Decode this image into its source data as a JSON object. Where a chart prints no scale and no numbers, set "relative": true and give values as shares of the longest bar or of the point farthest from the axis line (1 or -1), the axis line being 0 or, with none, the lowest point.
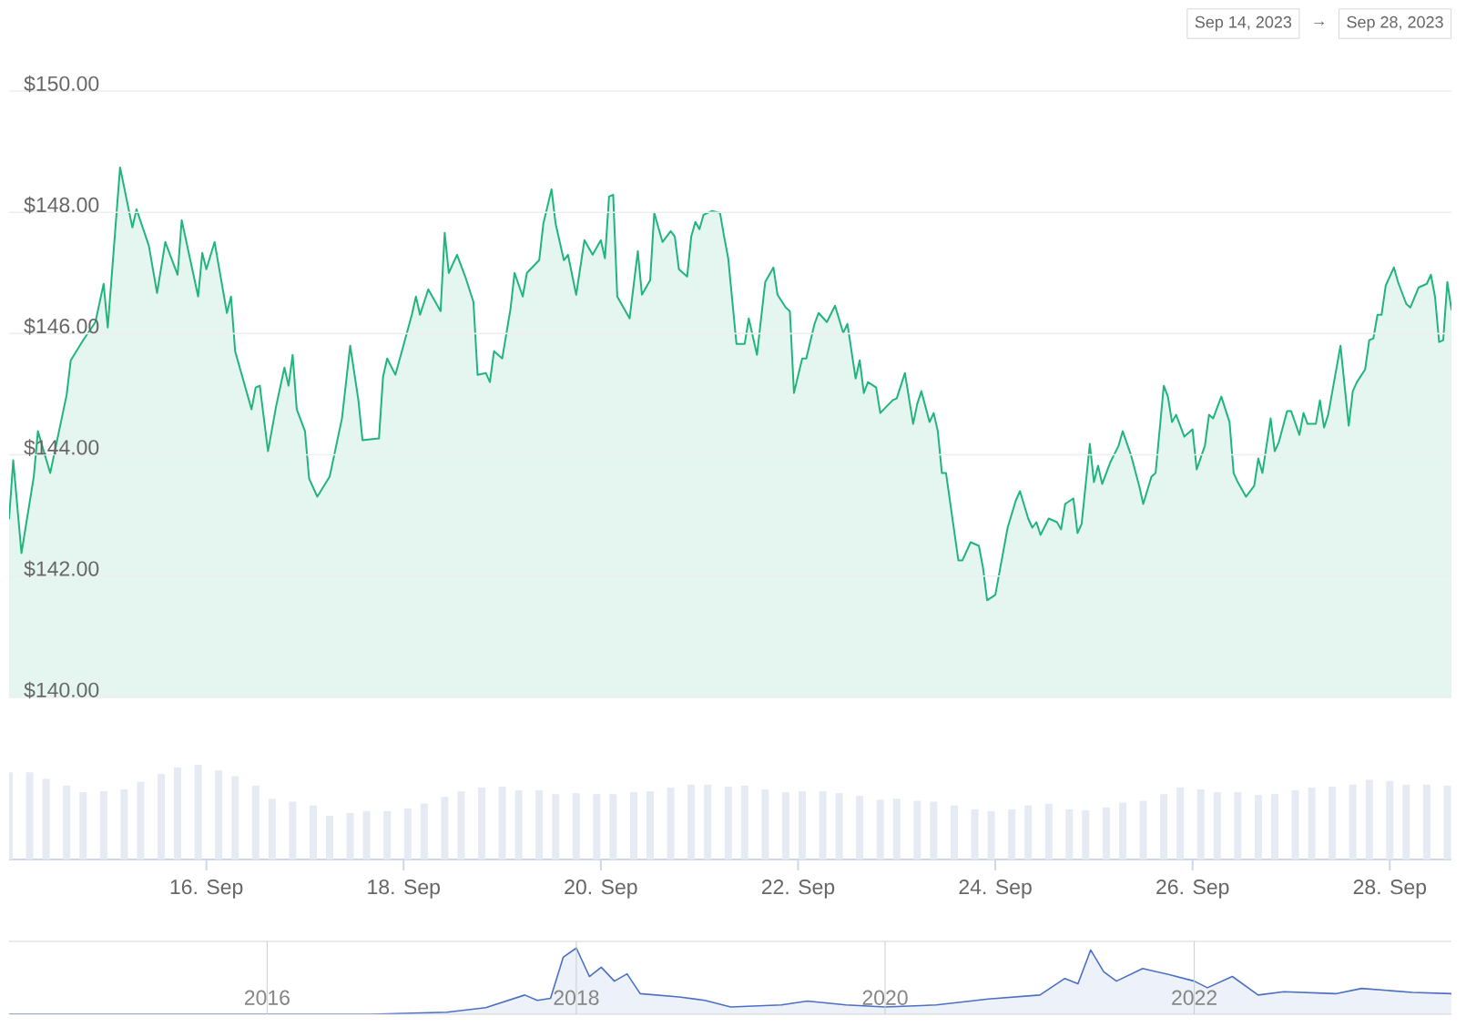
{
  "chart_data": [
    {
      "type": "area",
      "color": "#1fb57c",
      "grid": "y",
      "tick_labels": "y",
      "xlim": [
        "2023-09-14T00:00",
        "2023-09-28T15:00"
      ],
      "ylim": [
        140,
        150
      ],
      "yticks": [
        {
          "value": 140,
          "label": "$140.00"
        },
        {
          "value": 142,
          "label": "$142.00"
        },
        {
          "value": 144,
          "label": "$144.00"
        },
        {
          "value": 146,
          "label": "$146.00"
        },
        {
          "value": 148,
          "label": "$148.00"
        },
        {
          "value": 150,
          "label": "$150.00"
        }
      ],
      "annotations": [
        "Sep 14, 2023",
        "→",
        "Sep 28, 2023"
      ],
      "x": [
        "2023-09-14T00:00",
        "2023-09-14T01:00",
        "2023-09-14T03:00",
        "2023-09-14T06:00",
        "2023-09-14T07:00",
        "2023-09-14T10:00",
        "2023-09-14T14:00",
        "2023-09-14T15:00",
        "2023-09-14T18:00",
        "2023-09-14T21:00",
        "2023-09-14T23:00",
        "2023-09-15T00:00",
        "2023-09-15T03:00",
        "2023-09-15T06:00",
        "2023-09-15T07:00",
        "2023-09-15T10:00",
        "2023-09-15T12:00",
        "2023-09-15T14:00",
        "2023-09-15T17:00",
        "2023-09-15T18:00",
        "2023-09-15T22:00",
        "2023-09-15T23:00",
        "2023-09-16T00:00",
        "2023-09-16T02:00",
        "2023-09-16T05:00",
        "2023-09-16T06:00",
        "2023-09-16T07:00",
        "2023-09-16T11:00",
        "2023-09-16T12:00",
        "2023-09-16T13:00",
        "2023-09-16T15:00",
        "2023-09-16T17:00",
        "2023-09-16T19:00",
        "2023-09-16T20:00",
        "2023-09-16T21:00",
        "2023-09-16T22:00",
        "2023-09-17T00:00",
        "2023-09-17T01:00",
        "2023-09-17T03:00",
        "2023-09-17T06:00",
        "2023-09-17T09:00",
        "2023-09-17T11:00",
        "2023-09-17T13:00",
        "2023-09-17T14:00",
        "2023-09-17T18:00",
        "2023-09-17T19:00",
        "2023-09-17T20:00",
        "2023-09-17T22:00",
        "2023-09-18T02:00",
        "2023-09-18T03:00",
        "2023-09-18T04:00",
        "2023-09-18T06:00",
        "2023-09-18T09:00",
        "2023-09-18T10:00",
        "2023-09-18T11:00",
        "2023-09-18T13:00",
        "2023-09-18T15:00",
        "2023-09-18T17:00",
        "2023-09-18T18:00",
        "2023-09-18T20:00",
        "2023-09-18T21:00",
        "2023-09-18T22:00",
        "2023-09-19T00:00",
        "2023-09-19T02:00",
        "2023-09-19T03:00",
        "2023-09-19T05:00",
        "2023-09-19T06:00",
        "2023-09-19T09:00",
        "2023-09-19T10:00",
        "2023-09-19T12:00",
        "2023-09-19T13:00",
        "2023-09-19T15:00",
        "2023-09-19T16:00",
        "2023-09-19T18:00",
        "2023-09-19T20:00",
        "2023-09-19T22:00",
        "2023-09-20T00:00",
        "2023-09-20T01:00",
        "2023-09-20T02:00",
        "2023-09-20T03:00",
        "2023-09-20T04:00",
        "2023-09-20T07:00",
        "2023-09-20T09:00",
        "2023-09-20T10:00",
        "2023-09-20T12:00",
        "2023-09-20T13:00",
        "2023-09-20T15:00",
        "2023-09-20T17:00",
        "2023-09-20T18:00",
        "2023-09-20T19:00",
        "2023-09-20T21:00",
        "2023-09-20T22:00",
        "2023-09-20T23:00",
        "2023-09-21T00:00",
        "2023-09-21T01:00",
        "2023-09-21T03:00",
        "2023-09-21T05:00",
        "2023-09-21T06:00",
        "2023-09-21T07:00",
        "2023-09-21T09:00",
        "2023-09-21T11:00",
        "2023-09-21T12:00",
        "2023-09-21T14:00",
        "2023-09-21T16:00",
        "2023-09-21T18:00",
        "2023-09-21T19:00",
        "2023-09-21T21:00",
        "2023-09-21T22:00",
        "2023-09-21T23:00",
        "2023-09-22T01:00",
        "2023-09-22T02:00",
        "2023-09-22T04:00",
        "2023-09-22T05:00",
        "2023-09-22T07:00",
        "2023-09-22T09:00",
        "2023-09-22T11:00",
        "2023-09-22T12:00",
        "2023-09-22T14:00",
        "2023-09-22T15:00",
        "2023-09-22T16:00",
        "2023-09-22T17:00",
        "2023-09-22T19:00",
        "2023-09-22T20:00",
        "2023-09-22T23:00",
        "2023-09-23T00:00",
        "2023-09-23T02:00",
        "2023-09-23T04:00",
        "2023-09-23T05:00",
        "2023-09-23T06:00",
        "2023-09-23T08:00",
        "2023-09-23T09:00",
        "2023-09-23T10:00",
        "2023-09-23T11:00",
        "2023-09-23T12:00",
        "2023-09-23T15:00",
        "2023-09-23T16:00",
        "2023-09-23T18:00",
        "2023-09-23T20:00",
        "2023-09-23T21:00",
        "2023-09-23T22:00",
        "2023-09-24T00:00",
        "2023-09-24T03:00",
        "2023-09-24T05:00",
        "2023-09-24T06:00",
        "2023-09-24T08:00",
        "2023-09-24T09:00",
        "2023-09-24T10:00",
        "2023-09-24T11:00",
        "2023-09-24T13:00",
        "2023-09-24T15:00",
        "2023-09-24T16:00",
        "2023-09-24T17:00",
        "2023-09-24T19:00",
        "2023-09-24T20:00",
        "2023-09-24T21:00",
        "2023-09-24T23:00",
        "2023-09-25T00:00",
        "2023-09-25T01:00",
        "2023-09-25T02:00",
        "2023-09-25T04:00",
        "2023-09-25T06:00",
        "2023-09-25T07:00",
        "2023-09-25T09:00",
        "2023-09-25T11:00",
        "2023-09-25T12:00",
        "2023-09-25T14:00",
        "2023-09-25T15:00",
        "2023-09-25T17:00",
        "2023-09-25T18:00",
        "2023-09-25T19:00",
        "2023-09-25T20:00",
        "2023-09-25T22:00",
        "2023-09-26T00:00",
        "2023-09-26T01:00",
        "2023-09-26T03:00",
        "2023-09-26T04:00",
        "2023-09-26T05:00",
        "2023-09-26T07:00",
        "2023-09-26T09:00",
        "2023-09-26T10:00",
        "2023-09-26T11:00",
        "2023-09-26T13:00",
        "2023-09-26T15:00",
        "2023-09-26T16:00",
        "2023-09-26T17:00",
        "2023-09-26T19:00",
        "2023-09-26T20:00",
        "2023-09-26T21:00",
        "2023-09-26T23:00",
        "2023-09-27T00:00",
        "2023-09-27T02:00",
        "2023-09-27T03:00",
        "2023-09-27T04:00",
        "2023-09-27T06:00",
        "2023-09-27T07:00",
        "2023-09-27T08:00",
        "2023-09-27T09:00",
        "2023-09-27T12:00",
        "2023-09-27T14:00",
        "2023-09-27T15:00",
        "2023-09-27T16:00",
        "2023-09-27T18:00",
        "2023-09-27T19:00",
        "2023-09-27T20:00",
        "2023-09-27T21:00",
        "2023-09-27T22:00",
        "2023-09-27T23:00",
        "2023-09-28T01:00",
        "2023-09-28T02:00",
        "2023-09-28T04:00",
        "2023-09-28T05:00",
        "2023-09-28T07:00",
        "2023-09-28T09:00",
        "2023-09-28T10:00",
        "2023-09-28T11:00",
        "2023-09-28T12:00",
        "2023-09-28T13:00",
        "2023-09-28T14:00",
        "2023-09-28T15:00"
      ],
      "values": [
        142.95,
        143.91,
        142.38,
        143.64,
        144.39,
        143.7,
        144.99,
        145.56,
        145.89,
        146.19,
        146.82,
        146.1,
        148.74,
        147.75,
        148.05,
        147.45,
        146.67,
        147.51,
        146.97,
        147.87,
        146.61,
        147.33,
        147.06,
        147.51,
        146.34,
        146.61,
        145.71,
        144.75,
        145.11,
        145.14,
        144.06,
        144.81,
        145.44,
        145.14,
        145.65,
        144.75,
        144.39,
        143.61,
        143.31,
        143.64,
        144.6,
        145.8,
        144.9,
        144.24,
        144.27,
        145.29,
        145.59,
        145.32,
        146.31,
        146.61,
        146.31,
        146.73,
        146.37,
        147.66,
        147.0,
        147.3,
        146.94,
        146.52,
        145.32,
        145.35,
        145.2,
        145.71,
        145.59,
        146.4,
        147.0,
        146.61,
        147.0,
        147.21,
        147.81,
        148.38,
        147.81,
        147.21,
        147.3,
        146.64,
        147.54,
        147.3,
        147.54,
        147.24,
        148.26,
        148.29,
        146.61,
        146.25,
        147.36,
        146.64,
        146.88,
        147.99,
        147.51,
        147.69,
        147.6,
        147.06,
        146.94,
        147.6,
        147.84,
        147.72,
        147.96,
        148.02,
        147.99,
        147.6,
        147.24,
        145.83,
        145.83,
        146.25,
        145.65,
        146.85,
        147.09,
        146.64,
        146.43,
        146.37,
        145.02,
        145.59,
        145.59,
        146.16,
        146.34,
        146.19,
        146.46,
        146.01,
        146.16,
        145.26,
        145.56,
        145.02,
        145.2,
        145.11,
        144.69,
        144.9,
        144.93,
        145.35,
        144.51,
        144.84,
        145.05,
        144.54,
        144.69,
        144.39,
        143.7,
        143.7,
        142.26,
        142.26,
        142.56,
        142.5,
        142.14,
        141.6,
        141.69,
        142.8,
        143.25,
        143.4,
        142.95,
        142.8,
        142.89,
        142.68,
        142.95,
        142.89,
        142.77,
        143.19,
        143.28,
        142.71,
        142.86,
        144.18,
        143.55,
        143.82,
        143.52,
        143.88,
        144.15,
        144.39,
        144.0,
        143.49,
        143.19,
        143.64,
        143.7,
        145.14,
        144.96,
        144.54,
        144.66,
        144.3,
        144.42,
        143.76,
        144.15,
        144.66,
        144.6,
        144.96,
        144.54,
        143.7,
        143.55,
        143.31,
        143.49,
        143.94,
        143.7,
        144.6,
        144.06,
        144.21,
        144.72,
        144.72,
        144.33,
        144.69,
        144.51,
        144.51,
        144.9,
        144.45,
        144.66,
        145.8,
        144.48,
        145.05,
        145.2,
        145.41,
        145.89,
        145.92,
        146.31,
        146.31,
        146.79,
        147.09,
        146.85,
        146.49,
        146.43,
        146.76,
        146.82,
        146.97,
        146.61,
        145.86,
        145.89,
        146.85,
        146.4
      ]
    },
    {
      "type": "bar",
      "relative": true,
      "color": "#e6eaf2",
      "tick_labels": "x",
      "xlim": [
        "2023-09-14T00:00",
        "2023-09-28T15:00"
      ],
      "xticks": [
        {
          "value": "2023-09-16",
          "label": "16. Sep"
        },
        {
          "value": "2023-09-18",
          "label": "18. Sep"
        },
        {
          "value": "2023-09-20",
          "label": "20. Sep"
        },
        {
          "value": "2023-09-22",
          "label": "22. Sep"
        },
        {
          "value": "2023-09-24",
          "label": "24. Sep"
        },
        {
          "value": "2023-09-26",
          "label": "26. Sep"
        },
        {
          "value": "2023-09-28",
          "label": "28. Sep"
        }
      ],
      "x": [
        "2023-09-14T00:00",
        "2023-09-14T05:00",
        "2023-09-14T09:00",
        "2023-09-14T14:00",
        "2023-09-14T18:00",
        "2023-09-14T23:00",
        "2023-09-15T04:00",
        "2023-09-15T08:00",
        "2023-09-15T13:00",
        "2023-09-15T17:00",
        "2023-09-15T22:00",
        "2023-09-16T03:00",
        "2023-09-16T07:00",
        "2023-09-16T12:00",
        "2023-09-16T16:00",
        "2023-09-16T21:00",
        "2023-09-17T02:00",
        "2023-09-17T06:00",
        "2023-09-17T11:00",
        "2023-09-17T15:00",
        "2023-09-17T20:00",
        "2023-09-18T01:00",
        "2023-09-18T05:00",
        "2023-09-18T10:00",
        "2023-09-18T14:00",
        "2023-09-18T19:00",
        "2023-09-19T00:00",
        "2023-09-19T04:00",
        "2023-09-19T09:00",
        "2023-09-19T13:00",
        "2023-09-19T18:00",
        "2023-09-19T23:00",
        "2023-09-20T03:00",
        "2023-09-20T08:00",
        "2023-09-20T12:00",
        "2023-09-20T17:00",
        "2023-09-20T22:00",
        "2023-09-21T02:00",
        "2023-09-21T07:00",
        "2023-09-21T11:00",
        "2023-09-21T16:00",
        "2023-09-21T21:00",
        "2023-09-22T01:00",
        "2023-09-22T06:00",
        "2023-09-22T10:00",
        "2023-09-22T15:00",
        "2023-09-22T20:00",
        "2023-09-23T00:00",
        "2023-09-23T05:00",
        "2023-09-23T09:00",
        "2023-09-23T14:00",
        "2023-09-23T19:00",
        "2023-09-23T23:00",
        "2023-09-24T04:00",
        "2023-09-24T08:00",
        "2023-09-24T13:00",
        "2023-09-24T18:00",
        "2023-09-24T22:00",
        "2023-09-25T03:00",
        "2023-09-25T07:00",
        "2023-09-25T12:00",
        "2023-09-25T17:00",
        "2023-09-25T21:00",
        "2023-09-26T02:00",
        "2023-09-26T06:00",
        "2023-09-26T11:00",
        "2023-09-26T16:00",
        "2023-09-26T20:00",
        "2023-09-27T01:00",
        "2023-09-27T05:00",
        "2023-09-27T10:00",
        "2023-09-27T15:00",
        "2023-09-27T19:00",
        "2023-09-28T00:00",
        "2023-09-28T04:00",
        "2023-09-28T09:00",
        "2023-09-28T14:00"
      ],
      "values": [
        0.92,
        0.92,
        0.85,
        0.78,
        0.71,
        0.72,
        0.74,
        0.82,
        0.9,
        0.97,
        1,
        0.94,
        0.88,
        0.78,
        0.64,
        0.61,
        0.57,
        0.46,
        0.49,
        0.51,
        0.51,
        0.54,
        0.59,
        0.66,
        0.72,
        0.76,
        0.77,
        0.73,
        0.73,
        0.69,
        0.7,
        0.69,
        0.69,
        0.71,
        0.72,
        0.76,
        0.79,
        0.79,
        0.77,
        0.78,
        0.74,
        0.71,
        0.72,
        0.72,
        0.7,
        0.67,
        0.63,
        0.64,
        0.62,
        0.61,
        0.57,
        0.53,
        0.51,
        0.53,
        0.57,
        0.59,
        0.53,
        0.52,
        0.55,
        0.6,
        0.62,
        0.69,
        0.76,
        0.74,
        0.71,
        0.71,
        0.68,
        0.69,
        0.73,
        0.76,
        0.77,
        0.79,
        0.84,
        0.83,
        0.79,
        0.79,
        0.78
      ]
    },
    {
      "type": "area",
      "relative": true,
      "color": "#4a6fc4",
      "grid": "x",
      "tick_labels": "x",
      "xlim": [
        "2014-05",
        "2023-09"
      ],
      "xticks": [
        {
          "value": "2016",
          "label": "2016"
        },
        {
          "value": "2018",
          "label": "2018"
        },
        {
          "value": "2020",
          "label": "2020"
        },
        {
          "value": "2022",
          "label": "2022"
        }
      ],
      "x": [
        "2014-05",
        "2016-09",
        "2017-03",
        "2017-06",
        "2017-09",
        "2017-10",
        "2017-11",
        "2017-12",
        "2018-01",
        "2018-02",
        "2018-03",
        "2018-04",
        "2018-05",
        "2018-06",
        "2018-09",
        "2018-11",
        "2019-01",
        "2019-05",
        "2019-07",
        "2019-10",
        "2020-01",
        "2020-05",
        "2020-09",
        "2021-01",
        "2021-03",
        "2021-04",
        "2021-05",
        "2021-06",
        "2021-07",
        "2021-09",
        "2021-11",
        "2022-01",
        "2022-02",
        "2022-04",
        "2022-06",
        "2022-08",
        "2022-12",
        "2023-02",
        "2023-06",
        "2023-09"
      ],
      "values": [
        0,
        0,
        0.03,
        0.1,
        0.29,
        0.21,
        0.24,
        0.86,
        1,
        0.57,
        0.71,
        0.5,
        0.61,
        0.31,
        0.26,
        0.21,
        0.11,
        0.14,
        0.2,
        0.14,
        0.11,
        0.14,
        0.23,
        0.29,
        0.54,
        0.46,
        0.97,
        0.64,
        0.5,
        0.69,
        0.6,
        0.5,
        0.4,
        0.57,
        0.29,
        0.34,
        0.31,
        0.39,
        0.33,
        0.31
      ]
    }
  ]
}
